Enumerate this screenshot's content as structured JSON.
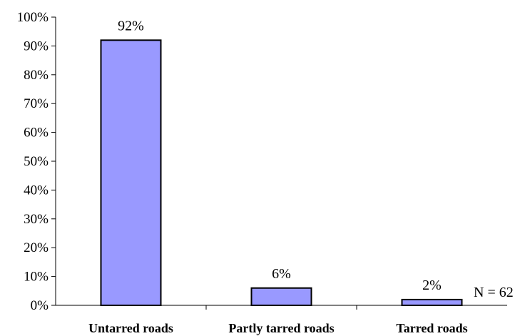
{
  "chart_data": {
    "type": "bar",
    "title": "",
    "xlabel": "",
    "ylabel": "",
    "categories": [
      "Untarred roads",
      "Partly tarred roads",
      "Tarred roads"
    ],
    "values": [
      92,
      6,
      2
    ],
    "data_labels": [
      "92%",
      "6%",
      "2%"
    ],
    "ylim": [
      0,
      100
    ],
    "y_ticks": [
      0,
      10,
      20,
      30,
      40,
      50,
      60,
      70,
      80,
      90,
      100
    ],
    "y_tick_labels": [
      "0%",
      "10%",
      "20%",
      "30%",
      "40%",
      "50%",
      "60%",
      "70%",
      "80%",
      "90%",
      "100%"
    ],
    "grid": false,
    "legend": "none",
    "annotation": "N = 62",
    "bar_color": "#9999ff",
    "bar_edge_color": "#000000"
  }
}
